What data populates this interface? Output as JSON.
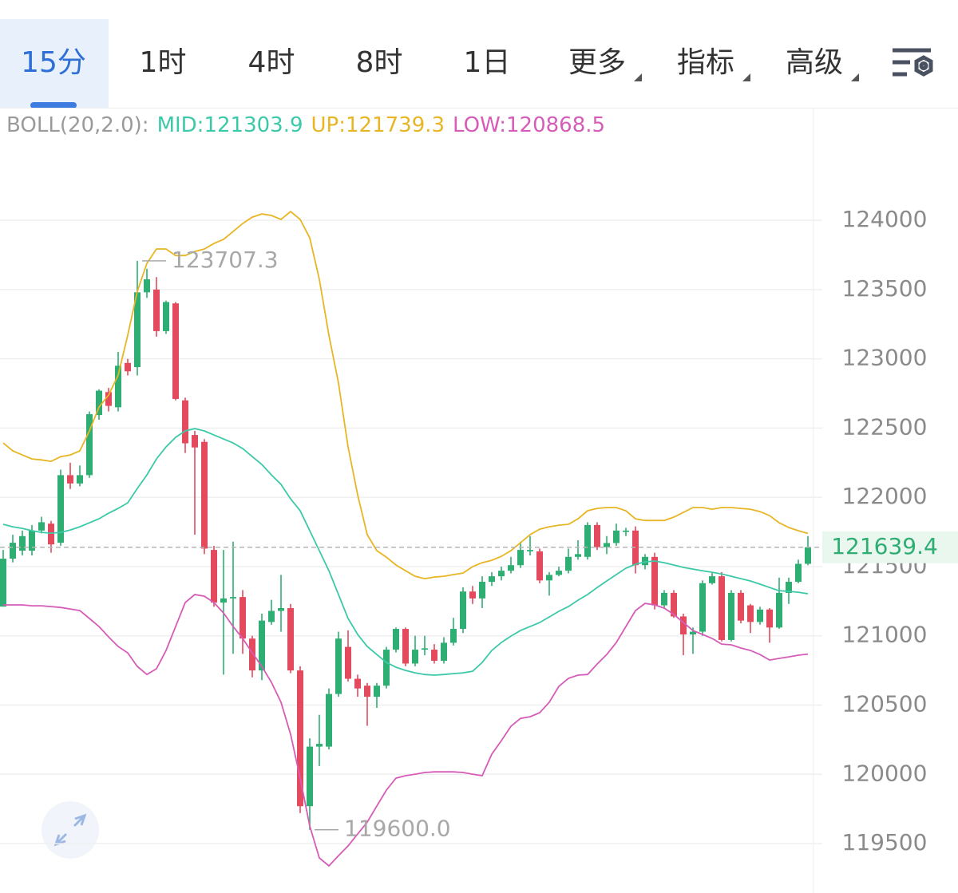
{
  "tabs": [
    "15分",
    "1时",
    "4时",
    "8时",
    "1日"
  ],
  "menus": [
    "更多",
    "指标",
    "高级"
  ],
  "chart_data": {
    "type": "candlestick",
    "indicator": "BOLL(20,2.0):",
    "candles": {
      "up_color": "#2eae73",
      "down_color": "#e34a5d",
      "open": [
        121211,
        121557,
        121615,
        121615,
        121760,
        121810,
        121672,
        122160,
        122100,
        122160,
        122594,
        122760,
        122650,
        122970,
        122940,
        123480,
        123500,
        123200,
        123400,
        122700,
        122450,
        122400,
        121620,
        121240,
        121270,
        121280,
        120980,
        120750,
        121100,
        121180,
        121200,
        120750,
        119770,
        120200,
        120200,
        120580,
        120920,
        120690,
        120640,
        120560,
        120640,
        120900,
        121050,
        120800,
        120900,
        120900,
        120820,
        120950,
        121050,
        121320,
        121270,
        121390,
        121430,
        121470,
        121510,
        121610,
        121610,
        121400,
        121440,
        121470,
        121570,
        121570,
        121800,
        121640,
        121670,
        121750,
        121760,
        121510,
        121570,
        121220,
        121310,
        121140,
        121010,
        121030,
        121380,
        121430,
        120970,
        121310,
        121220,
        121100,
        121190,
        121060,
        121310,
        121390,
        121520
      ],
      "high": [
        121620,
        121730,
        121760,
        121800,
        121860,
        121830,
        122200,
        122250,
        122230,
        122620,
        122780,
        122790,
        123050,
        123000,
        123707.3,
        123650,
        123590,
        123420,
        123410,
        122720,
        122480,
        122420,
        121650,
        121620,
        121680,
        121330,
        121000,
        121160,
        121260,
        121440,
        121230,
        120780,
        120260,
        120430,
        120620,
        121030,
        121040,
        120720,
        120660,
        120660,
        120920,
        121060,
        121060,
        121000,
        121000,
        120940,
        120990,
        121130,
        121350,
        121360,
        121430,
        121460,
        121500,
        121570,
        121680,
        121720,
        121630,
        121460,
        121500,
        121630,
        121690,
        121820,
        121820,
        121720,
        121810,
        121780,
        121790,
        121590,
        121600,
        121330,
        121330,
        121160,
        121060,
        121400,
        121460,
        121460,
        121330,
        121330,
        121230,
        121210,
        121200,
        121420,
        121420,
        121550,
        121720
      ],
      "low": [
        121211,
        121530,
        121580,
        121580,
        121740,
        121600,
        121650,
        122060,
        122080,
        122140,
        122560,
        122620,
        122620,
        122880,
        122880,
        123440,
        123160,
        123180,
        122700,
        122320,
        121730,
        121590,
        121210,
        120720,
        120870,
        120870,
        120700,
        120680,
        121080,
        121030,
        120730,
        119720,
        119600,
        120060,
        120180,
        120560,
        120670,
        120560,
        120350,
        120480,
        120620,
        120880,
        120780,
        120780,
        120860,
        120800,
        120800,
        120930,
        121020,
        121230,
        121200,
        121360,
        121400,
        121450,
        121490,
        121580,
        121380,
        121290,
        121430,
        121450,
        121550,
        121550,
        121620,
        121590,
        121650,
        121720,
        121450,
        121480,
        121190,
        121200,
        121130,
        120860,
        120870,
        121000,
        121370,
        120960,
        120960,
        121090,
        121020,
        121080,
        120950,
        121050,
        121230,
        121380,
        121510
      ],
      "close": [
        121557,
        121672,
        121720,
        121760,
        121820,
        121660,
        122160,
        122100,
        122160,
        122600,
        122770,
        122660,
        122950,
        122910,
        123480,
        123574,
        123200,
        123410,
        122710,
        122390,
        122360,
        121630,
        121240,
        121270,
        121280,
        120980,
        120750,
        121110,
        121180,
        121200,
        120750,
        119770,
        120200,
        120220,
        120580,
        120980,
        120690,
        120620,
        120560,
        120640,
        120900,
        121050,
        120800,
        120900,
        120910,
        120820,
        120950,
        121050,
        121320,
        121270,
        121390,
        121430,
        121470,
        121510,
        121620,
        121620,
        121400,
        121440,
        121470,
        121570,
        121590,
        121800,
        121640,
        121670,
        121760,
        121760,
        121510,
        121570,
        121220,
        121310,
        121140,
        121010,
        121030,
        121380,
        121430,
        120970,
        121310,
        121110,
        121100,
        121190,
        121060,
        121310,
        121390,
        121520,
        121639.4
      ]
    },
    "series": [
      {
        "name": "MID:121303.9",
        "color": "#3cc9a8",
        "values": [
          121805,
          121787,
          121776,
          121759,
          121747,
          121741,
          121747,
          121764,
          121787,
          121816,
          121845,
          121885,
          121920,
          121960,
          122064,
          122162,
          122277,
          122364,
          122433,
          122479,
          122496,
          122479,
          122450,
          122421,
          122392,
          122352,
          122294,
          122237,
          122162,
          122093,
          121989,
          121903,
          121759,
          121615,
          121470,
          121298,
          121125,
          121010,
          120923,
          120865,
          120808,
          120773,
          120750,
          120733,
          120721,
          120716,
          120721,
          120727,
          120733,
          120744,
          120808,
          120894,
          120952,
          120998,
          121038,
          121067,
          121096,
          121136,
          121177,
          121211,
          121257,
          121298,
          121349,
          121396,
          121442,
          121488,
          121517,
          121534,
          121540,
          121528,
          121511,
          121494,
          121482,
          121470,
          121459,
          121447,
          121430,
          121413,
          121396,
          121373,
          121349,
          121326,
          121321,
          121315,
          121303.9
        ]
      },
      {
        "name": "UP:121739.3",
        "color": "#e8b524",
        "values": [
          122392,
          122335,
          122306,
          122277,
          122270,
          122260,
          122294,
          122306,
          122335,
          122479,
          122652,
          122738,
          122882,
          123170,
          123487,
          123689,
          123793,
          123793,
          123746,
          123746,
          123775,
          123793,
          123833,
          123862,
          123919,
          123977,
          124023,
          124046,
          124035,
          124006,
          124063,
          124006,
          123873,
          123574,
          123170,
          122825,
          122364,
          122018,
          121730,
          121615,
          121568,
          121511,
          121470,
          121430,
          121413,
          121424,
          121430,
          121442,
          121453,
          121499,
          121528,
          121545,
          121574,
          121615,
          121672,
          121730,
          121770,
          121787,
          121799,
          121805,
          121845,
          121903,
          121920,
          121926,
          121926,
          121903,
          121845,
          121833,
          121833,
          121833,
          121857,
          121891,
          121926,
          121926,
          121914,
          121926,
          121926,
          121920,
          121914,
          121897,
          121868,
          121816,
          121782,
          121759,
          121739.3
        ]
      },
      {
        "name": "LOW:120868.5",
        "color": "#d65cb8",
        "values": [
          121223,
          121223,
          121223,
          121217,
          121217,
          121211,
          121205,
          121194,
          121182,
          121125,
          121067,
          120992,
          120923,
          120877,
          120779,
          120721,
          120762,
          120894,
          121067,
          121240,
          121298,
          121286,
          121240,
          121165,
          121067,
          120981,
          120877,
          120779,
          120664,
          120520,
          120289,
          119972,
          119627,
          119396,
          119339,
          119413,
          119483,
          119569,
          119655,
          119771,
          119886,
          119972,
          119990,
          120001,
          120013,
          120018,
          120018,
          120018,
          120013,
          120001,
          119990,
          120145,
          120243,
          120347,
          120404,
          120416,
          120445,
          120520,
          120635,
          120693,
          120716,
          120721,
          120796,
          120865,
          120952,
          121067,
          121182,
          121234,
          121223,
          121200,
          121154,
          121096,
          121038,
          121010,
          120981,
          120940,
          120935,
          120912,
          120894,
          120865,
          120825,
          120837,
          120848,
          120860,
          120868.5
        ]
      }
    ],
    "ylim": [
      119195,
      124784
    ],
    "yticks": [
      119500,
      120000,
      120500,
      121000,
      121500,
      122000,
      122500,
      123000,
      123500,
      124000
    ],
    "grid": true,
    "high_marker": 123707.3,
    "low_marker": {
      "value": 119600,
      "label": "119600.0"
    },
    "last_price": 121639.4
  }
}
